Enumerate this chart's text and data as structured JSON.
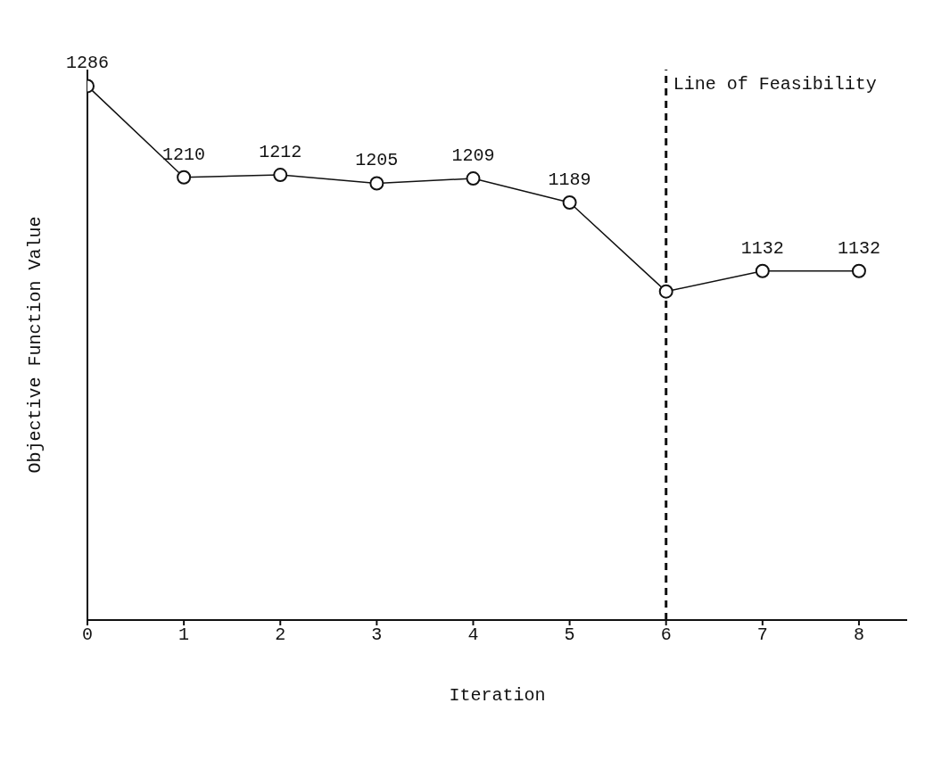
{
  "chart_data": {
    "type": "line",
    "xlabel": "Iteration",
    "ylabel": "Objective Function Value",
    "x": [
      0,
      1,
      2,
      3,
      4,
      5,
      6,
      7,
      8
    ],
    "series": [
      {
        "color": "#111111",
        "values": [
          1286,
          1210,
          1212,
          1205,
          1209,
          1189,
          1115,
          1132,
          1132
        ],
        "value_labels": [
          "1286",
          "1210",
          "1212",
          "1205",
          "1209",
          "1189",
          null,
          "1132",
          "1132"
        ]
      }
    ],
    "xlim": [
      0,
      8.5
    ],
    "xticks": [
      0,
      1,
      2,
      3,
      4,
      5,
      6,
      7,
      8
    ],
    "tick_labels": "x",
    "grid": false,
    "marker": "circle",
    "line_style": "solid",
    "ref_lines": [
      {
        "axis": "x",
        "value": 6,
        "label": "Line of Feasibility",
        "line_style": "dashed",
        "color": "#111111"
      }
    ]
  }
}
